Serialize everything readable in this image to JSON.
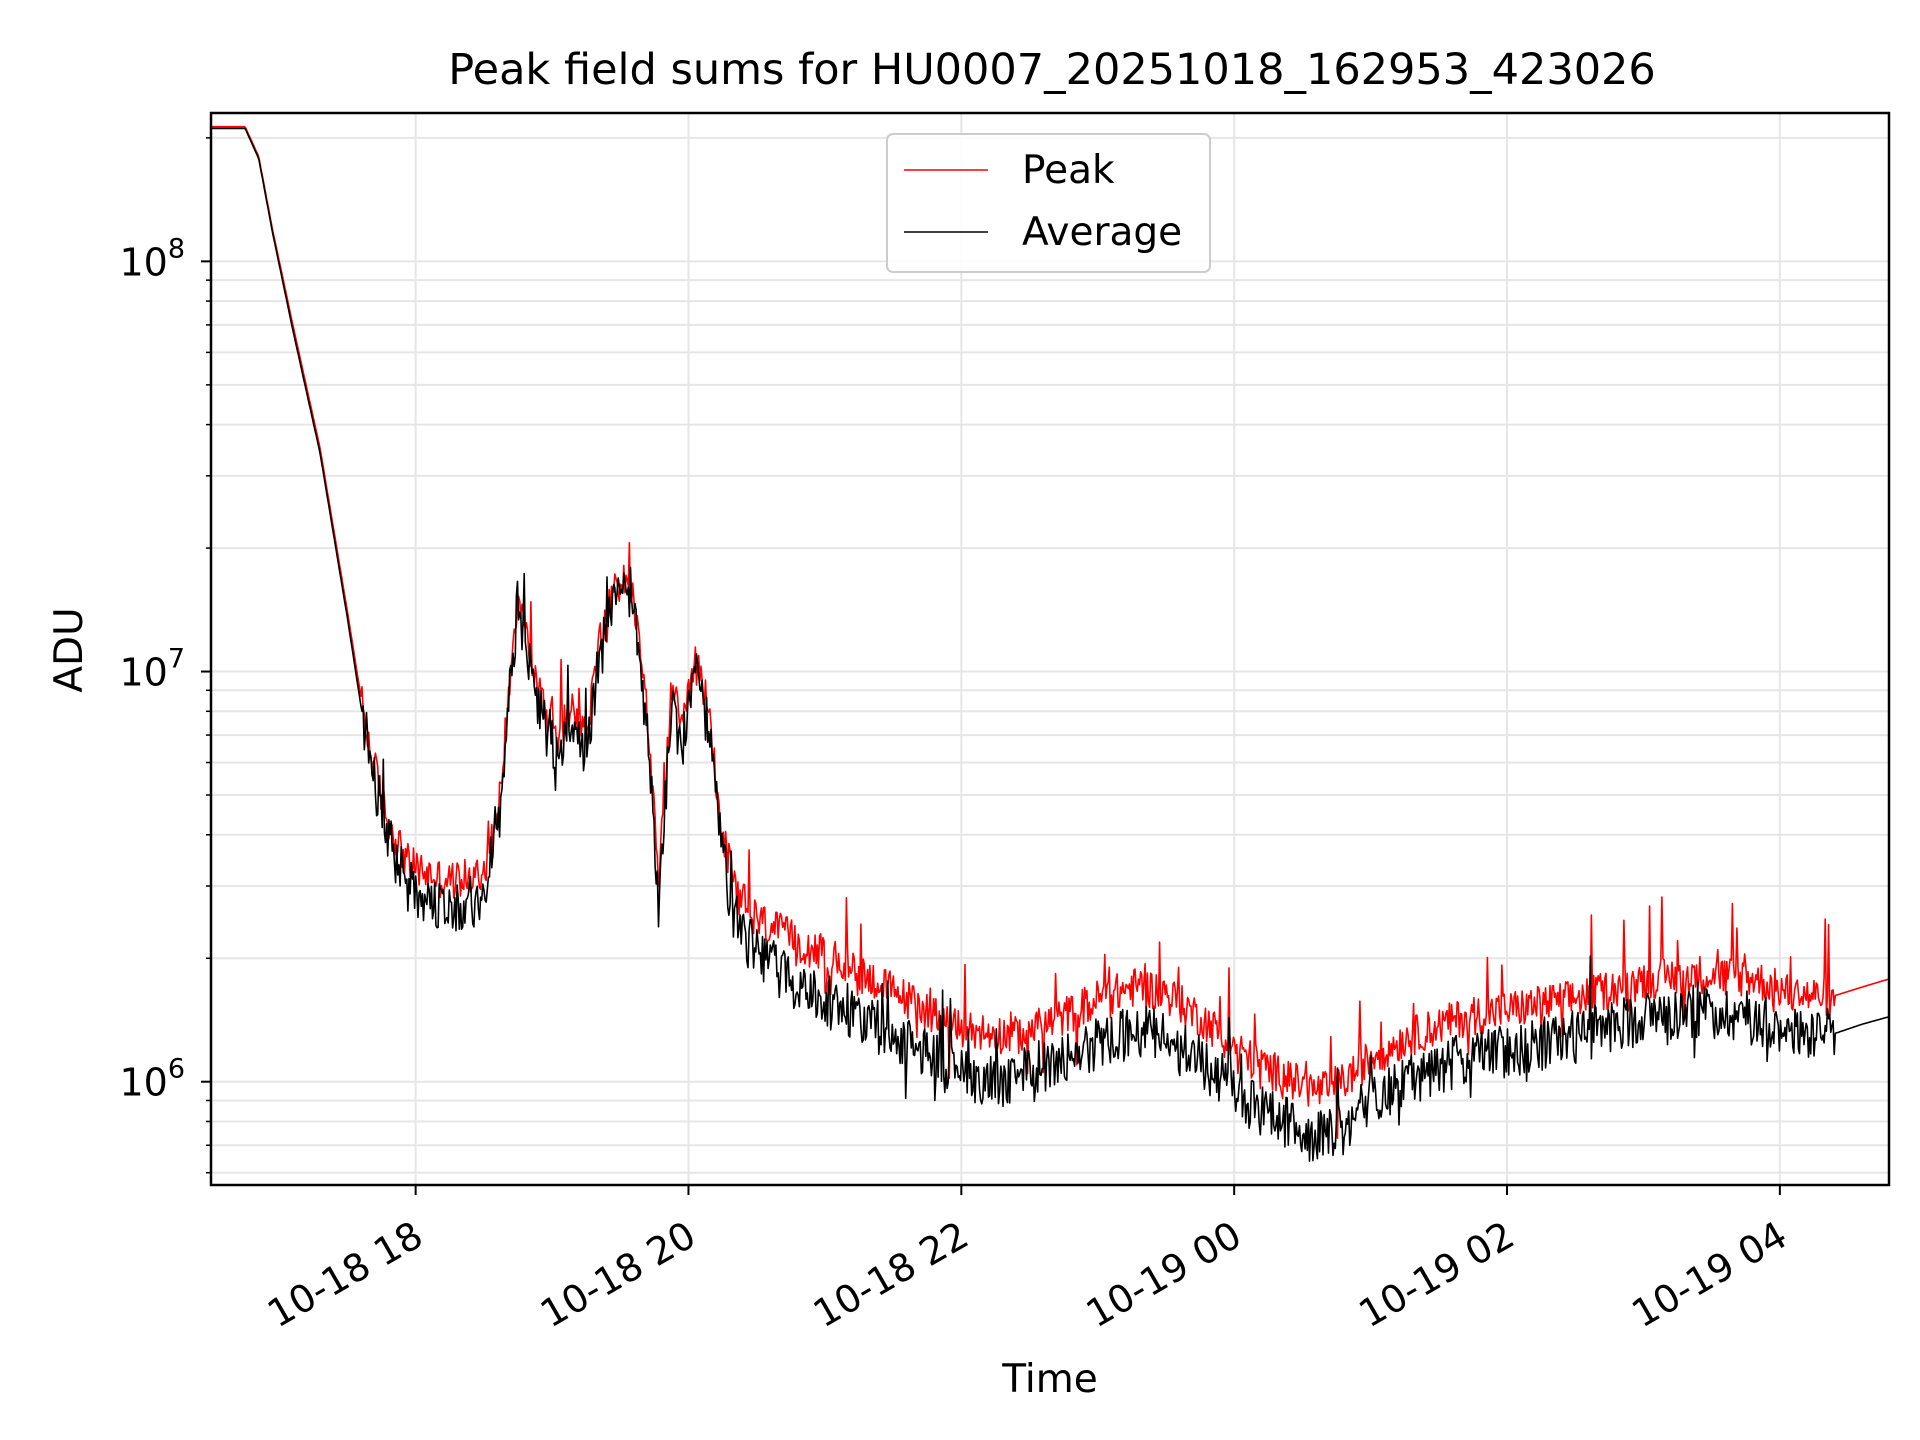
{
  "chart_data": {
    "type": "line",
    "title": "Peak field sums for HU0007_20251018_162953_423026",
    "xlabel": "Time",
    "ylabel": "ADU",
    "yscale": "log",
    "ylim": [
      560000,
      230000000
    ],
    "xlim_hours": [
      16.5,
      28.8
    ],
    "grid": true,
    "legend_position": "upper-center",
    "x_ticks": [
      {
        "hour": 18,
        "label": "10-18 18"
      },
      {
        "hour": 20,
        "label": "10-18 20"
      },
      {
        "hour": 22,
        "label": "10-18 22"
      },
      {
        "hour": 24,
        "label": "10-19 00"
      },
      {
        "hour": 26,
        "label": "10-19 02"
      },
      {
        "hour": 28,
        "label": "10-19 04"
      }
    ],
    "y_ticks": [
      {
        "value": 1000000,
        "base": "10",
        "exp": "6"
      },
      {
        "value": 10000000,
        "base": "10",
        "exp": "7"
      },
      {
        "value": 100000000,
        "base": "10",
        "exp": "8"
      }
    ],
    "series": [
      {
        "name": "Peak",
        "color": "#ff0000",
        "points": [
          [
            16.5,
            213000000
          ],
          [
            16.75,
            213000000
          ],
          [
            16.85,
            180000000
          ],
          [
            16.95,
            120000000
          ],
          [
            17.1,
            70000000
          ],
          [
            17.3,
            35000000
          ],
          [
            17.5,
            14000000
          ],
          [
            17.65,
            6800000
          ],
          [
            17.8,
            4300000
          ],
          [
            17.95,
            3400000
          ],
          [
            18.1,
            3200000
          ],
          [
            18.25,
            3100000
          ],
          [
            18.4,
            3150000
          ],
          [
            18.5,
            3300000
          ],
          [
            18.6,
            4300000
          ],
          [
            18.75,
            16000000
          ],
          [
            18.85,
            10500000
          ],
          [
            18.95,
            8000000
          ],
          [
            19.05,
            7000000
          ],
          [
            19.15,
            8500000
          ],
          [
            19.25,
            7000000
          ],
          [
            19.35,
            12000000
          ],
          [
            19.5,
            17500000
          ],
          [
            19.6,
            15000000
          ],
          [
            19.7,
            8000000
          ],
          [
            19.78,
            3000000
          ],
          [
            19.88,
            9500000
          ],
          [
            19.95,
            7000000
          ],
          [
            20.05,
            10800000
          ],
          [
            20.15,
            8000000
          ],
          [
            20.25,
            4000000
          ],
          [
            20.35,
            2900000
          ],
          [
            20.5,
            2500000
          ],
          [
            20.8,
            2200000
          ],
          [
            21.2,
            1900000
          ],
          [
            21.6,
            1600000
          ],
          [
            22.0,
            1350000
          ],
          [
            22.4,
            1300000
          ],
          [
            22.7,
            1420000
          ],
          [
            23.0,
            1600000
          ],
          [
            23.3,
            1720000
          ],
          [
            23.5,
            1650000
          ],
          [
            23.8,
            1400000
          ],
          [
            24.1,
            1150000
          ],
          [
            24.4,
            1020000
          ],
          [
            24.6,
            950000
          ],
          [
            24.8,
            1000000
          ],
          [
            25.0,
            1150000
          ],
          [
            25.3,
            1300000
          ],
          [
            25.7,
            1450000
          ],
          [
            26.1,
            1520000
          ],
          [
            26.5,
            1600000
          ],
          [
            27.0,
            1780000
          ],
          [
            27.4,
            1840000
          ],
          [
            27.8,
            1800000
          ],
          [
            28.1,
            1630000
          ],
          [
            28.4,
            1620000
          ],
          [
            28.6,
            1700000
          ],
          [
            28.8,
            1780000
          ]
        ]
      },
      {
        "name": "Average",
        "color": "#000000",
        "points": [
          [
            16.5,
            211000000
          ],
          [
            16.75,
            211000000
          ],
          [
            16.85,
            178000000
          ],
          [
            16.95,
            118000000
          ],
          [
            17.1,
            68000000
          ],
          [
            17.3,
            34000000
          ],
          [
            17.5,
            13500000
          ],
          [
            17.65,
            6400000
          ],
          [
            17.8,
            3900000
          ],
          [
            17.95,
            3000000
          ],
          [
            18.1,
            2800000
          ],
          [
            18.25,
            2700000
          ],
          [
            18.4,
            2750000
          ],
          [
            18.5,
            2950000
          ],
          [
            18.6,
            4000000
          ],
          [
            18.75,
            15000000
          ],
          [
            18.85,
            9800000
          ],
          [
            18.95,
            7400000
          ],
          [
            19.05,
            6400000
          ],
          [
            19.15,
            7800000
          ],
          [
            19.25,
            6300000
          ],
          [
            19.35,
            11000000
          ],
          [
            19.5,
            16500000
          ],
          [
            19.6,
            14000000
          ],
          [
            19.7,
            7200000
          ],
          [
            19.78,
            2700000
          ],
          [
            19.88,
            8700000
          ],
          [
            19.95,
            6400000
          ],
          [
            20.05,
            10000000
          ],
          [
            20.15,
            7300000
          ],
          [
            20.25,
            3500000
          ],
          [
            20.35,
            2500000
          ],
          [
            20.5,
            2050000
          ],
          [
            20.8,
            1750000
          ],
          [
            21.2,
            1500000
          ],
          [
            21.6,
            1250000
          ],
          [
            22.0,
            1050000
          ],
          [
            22.4,
            1000000
          ],
          [
            22.7,
            1120000
          ],
          [
            23.0,
            1250000
          ],
          [
            23.3,
            1350000
          ],
          [
            23.5,
            1280000
          ],
          [
            23.8,
            1100000
          ],
          [
            24.1,
            900000
          ],
          [
            24.4,
            790000
          ],
          [
            24.6,
            740000
          ],
          [
            24.8,
            780000
          ],
          [
            25.0,
            900000
          ],
          [
            25.3,
            1030000
          ],
          [
            25.7,
            1150000
          ],
          [
            26.1,
            1220000
          ],
          [
            26.5,
            1300000
          ],
          [
            27.0,
            1450000
          ],
          [
            27.4,
            1500000
          ],
          [
            27.8,
            1460000
          ],
          [
            28.1,
            1320000
          ],
          [
            28.4,
            1310000
          ],
          [
            28.6,
            1380000
          ],
          [
            28.8,
            1440000
          ]
        ]
      }
    ]
  }
}
